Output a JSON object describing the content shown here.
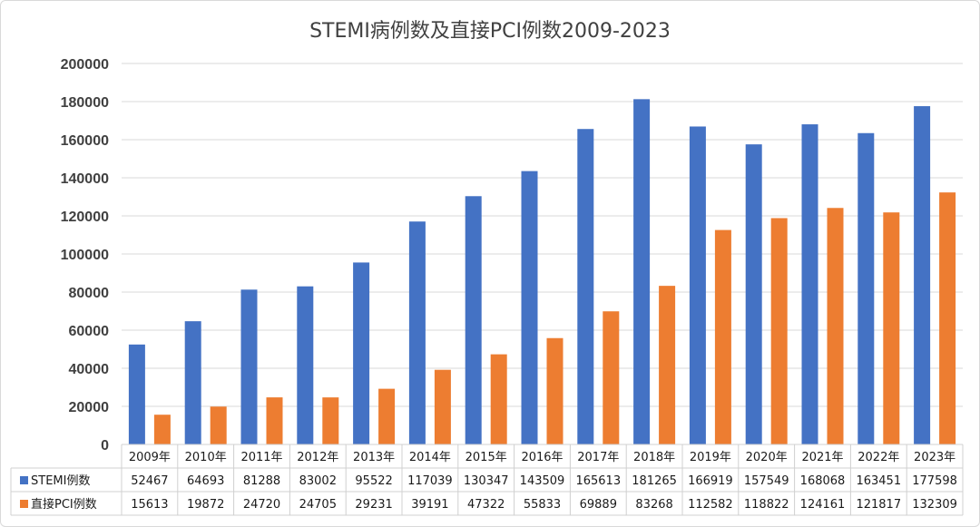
{
  "chart_data": {
    "type": "bar",
    "title": "STEMI病例数及直接PCI例数2009-2023",
    "categories": [
      "2009年",
      "2010年",
      "2011年",
      "2012年",
      "2013年",
      "2014年",
      "2015年",
      "2016年",
      "2017年",
      "2018年",
      "2019年",
      "2020年",
      "2021年",
      "2022年",
      "2023年"
    ],
    "series": [
      {
        "name": "STEMI例数",
        "color": "#4472c4",
        "values": [
          52467,
          64693,
          81288,
          83002,
          95522,
          117039,
          130347,
          143509,
          165613,
          181265,
          166919,
          157549,
          168068,
          163451,
          177598
        ]
      },
      {
        "name": "直接PCI例数",
        "color": "#ed7d31",
        "values": [
          15613,
          19872,
          24720,
          24705,
          29231,
          39191,
          47322,
          55833,
          69889,
          83268,
          112582,
          118822,
          124161,
          121817,
          132309
        ]
      }
    ],
    "ylim": [
      0,
      200000
    ],
    "yticks": [
      "0",
      "20000",
      "40000",
      "60000",
      "80000",
      "100000",
      "120000",
      "140000",
      "160000",
      "180000",
      "200000"
    ],
    "grid": true,
    "legend": "data-table",
    "data_table": true
  }
}
